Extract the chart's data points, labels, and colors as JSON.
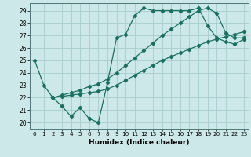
{
  "xlabel": "Humidex (Indice chaleur)",
  "background_color": "#cce8e8",
  "grid_color": "#aacccc",
  "line_color": "#1a7060",
  "xlim": [
    -0.5,
    23.5
  ],
  "ylim": [
    19.5,
    29.6
  ],
  "yticks": [
    20,
    21,
    22,
    23,
    24,
    25,
    26,
    27,
    28,
    29
  ],
  "xticks": [
    0,
    1,
    2,
    3,
    4,
    5,
    6,
    7,
    8,
    9,
    10,
    11,
    12,
    13,
    14,
    15,
    16,
    17,
    18,
    19,
    20,
    21,
    22,
    23
  ],
  "series1_x": [
    0,
    1,
    2,
    3,
    4,
    5,
    6,
    7,
    8,
    9,
    10,
    11,
    12,
    13,
    14,
    15,
    16,
    17,
    18,
    19,
    20,
    21,
    22,
    23
  ],
  "series1_y": [
    25.0,
    23.0,
    22.0,
    21.3,
    20.5,
    21.2,
    20.3,
    20.0,
    23.2,
    26.8,
    27.1,
    28.6,
    29.2,
    29.0,
    29.0,
    29.0,
    29.0,
    29.0,
    29.2,
    27.8,
    26.8,
    26.5,
    26.3,
    26.7
  ],
  "series2_x": [
    2,
    3,
    4,
    5,
    6,
    7,
    8,
    9,
    10,
    11,
    12,
    13,
    14,
    15,
    16,
    17,
    18,
    19,
    20,
    21,
    22,
    23
  ],
  "series2_y": [
    22.0,
    22.1,
    22.2,
    22.3,
    22.4,
    22.5,
    22.7,
    23.0,
    23.4,
    23.8,
    24.2,
    24.6,
    25.0,
    25.3,
    25.6,
    25.9,
    26.2,
    26.5,
    26.7,
    26.9,
    27.1,
    27.3
  ],
  "series3_x": [
    2,
    3,
    4,
    5,
    6,
    7,
    8,
    9,
    10,
    11,
    12,
    13,
    14,
    15,
    16,
    17,
    18,
    19,
    20,
    21,
    22,
    23
  ],
  "series3_y": [
    22.0,
    22.2,
    22.4,
    22.6,
    22.9,
    23.1,
    23.5,
    24.0,
    24.6,
    25.2,
    25.8,
    26.4,
    27.0,
    27.5,
    28.0,
    28.5,
    29.0,
    29.2,
    28.8,
    27.2,
    26.8,
    26.8
  ]
}
